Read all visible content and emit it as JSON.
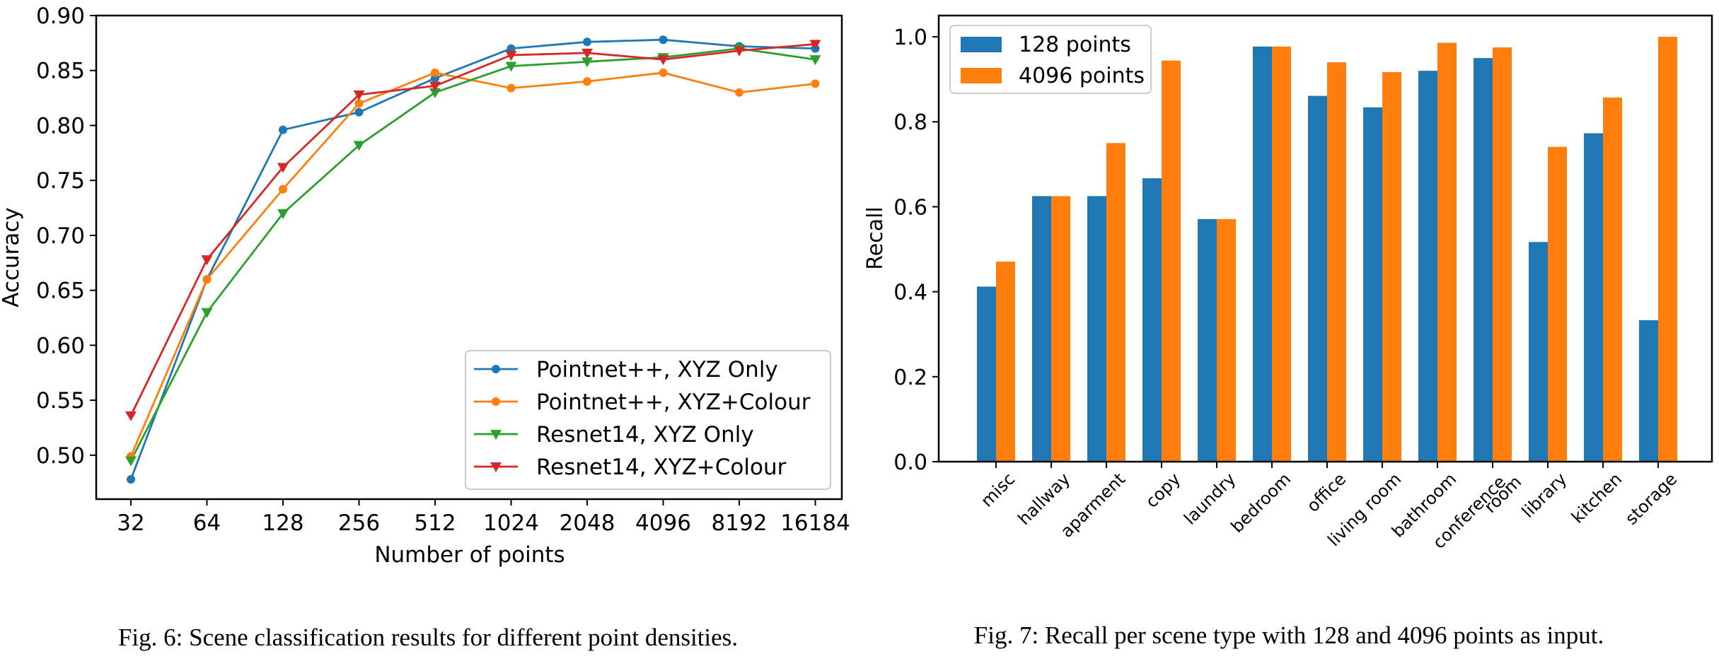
{
  "figure6": {
    "caption": "Fig. 6: Scene classification results for different point densities.",
    "chart_data": {
      "type": "line",
      "xlabel": "Number of points",
      "ylabel": "Accuracy",
      "categories": [
        "32",
        "64",
        "128",
        "256",
        "512",
        "1024",
        "2048",
        "4096",
        "8192",
        "16184"
      ],
      "ylim": [
        0.46,
        0.9
      ],
      "yticks": [
        "0.50",
        "0.55",
        "0.60",
        "0.65",
        "0.70",
        "0.75",
        "0.80",
        "0.85",
        "0.90"
      ],
      "grid": false,
      "legend_position": "lower-right",
      "series": [
        {
          "name": "Pointnet++,  XYZ Only",
          "color": "#1f77b4",
          "marker": "circle",
          "values": [
            0.478,
            0.66,
            0.796,
            0.812,
            0.843,
            0.87,
            0.876,
            0.878,
            0.872,
            0.87
          ]
        },
        {
          "name": "Pointnet++,  XYZ+Colour",
          "color": "#ff7f0e",
          "marker": "circle",
          "values": [
            0.499,
            0.66,
            0.742,
            0.82,
            0.848,
            0.834,
            0.84,
            0.848,
            0.83,
            0.838
          ]
        },
        {
          "name": "Resnet14, XYZ Only",
          "color": "#2ca02c",
          "marker": "triangle-down",
          "values": [
            0.495,
            0.63,
            0.72,
            0.782,
            0.83,
            0.854,
            0.858,
            0.862,
            0.87,
            0.86
          ]
        },
        {
          "name": "Resnet14, XYZ+Colour",
          "color": "#d62728",
          "marker": "triangle-down",
          "values": [
            0.536,
            0.678,
            0.762,
            0.828,
            0.836,
            0.864,
            0.866,
            0.86,
            0.868,
            0.874
          ]
        }
      ]
    }
  },
  "figure7": {
    "caption": "Fig. 7: Recall per scene type with 128 and 4096 points as input.",
    "chart_data": {
      "type": "bar",
      "ylabel": "Recall",
      "categories": [
        "misc",
        "hallway",
        "aparment",
        "copy",
        "laundry",
        "bedroom",
        "office",
        "living room",
        "bathroom",
        "conference room",
        "library",
        "kitchen",
        "storage"
      ],
      "ylim": [
        0.0,
        1.05
      ],
      "yticks": [
        "0.0",
        "0.2",
        "0.4",
        "0.6",
        "0.8",
        "1.0"
      ],
      "grid": false,
      "legend_position": "upper-left",
      "series": [
        {
          "name": "128 points",
          "color": "#1f77b4",
          "values": [
            0.412,
            0.625,
            0.625,
            0.667,
            0.571,
            0.977,
            0.861,
            0.834,
            0.92,
            0.95,
            0.517,
            0.773,
            0.333
          ]
        },
        {
          "name": "4096 points",
          "color": "#ff7f0e",
          "values": [
            0.471,
            0.625,
            0.75,
            0.944,
            0.571,
            0.977,
            0.94,
            0.917,
            0.986,
            0.975,
            0.741,
            0.857,
            1.0
          ]
        }
      ]
    }
  }
}
